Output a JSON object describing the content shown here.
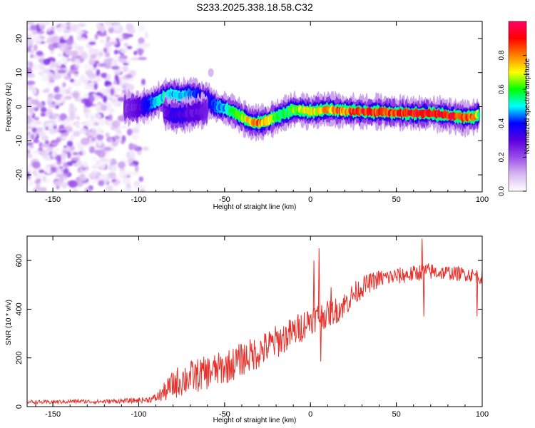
{
  "figure_title": "S233.2025.338.18.58.C32",
  "chart_data": [
    {
      "type": "heatmap",
      "name": "spectrogram",
      "title": "S233.2025.338.18.58.C32",
      "xlabel": "Height of straight line (km)",
      "ylabel": "Frequency (Hz)",
      "xlim": [
        -165,
        100
      ],
      "ylim": [
        -25,
        25
      ],
      "xticks": [
        -150,
        -100,
        -50,
        0,
        50,
        100
      ],
      "yticks": [
        -20,
        -10,
        0,
        10,
        20
      ],
      "xtick_labels": [
        "-150",
        "-100",
        "-50",
        "0",
        "50",
        "100"
      ],
      "ytick_labels": [
        "-20",
        "-10",
        "0",
        "10",
        "20"
      ],
      "noise_region_x": [
        -165,
        -93
      ],
      "ridge": {
        "x": [
          -108,
          -100,
          -95,
          -90,
          -85,
          -80,
          -75,
          -70,
          -65,
          -60,
          -55,
          -50,
          -45,
          -40,
          -35,
          -30,
          -25,
          -20,
          -15,
          -10,
          -5,
          0,
          5,
          10,
          15,
          20,
          30,
          40,
          50,
          60,
          70,
          80,
          90,
          95,
          98
        ],
        "y": [
          -0.5,
          -0.3,
          0.5,
          1.5,
          3.0,
          3.5,
          3.0,
          3.5,
          3.0,
          2.0,
          0.0,
          -0.5,
          -1.5,
          -3.0,
          -4.5,
          -4.8,
          -4.2,
          -3.0,
          -2.0,
          -1.0,
          -1.0,
          -1.5,
          -1.2,
          -0.8,
          -1.0,
          -1.3,
          -1.5,
          -1.5,
          -1.8,
          -2.0,
          -2.0,
          -2.5,
          -3.2,
          -3.0,
          -2.2
        ],
        "amplitude": [
          0.25,
          0.3,
          0.4,
          0.5,
          0.55,
          0.5,
          0.5,
          0.45,
          0.4,
          0.35,
          0.45,
          0.5,
          0.6,
          0.65,
          0.8,
          0.85,
          0.8,
          0.6,
          0.6,
          0.65,
          0.7,
          0.75,
          0.75,
          0.8,
          0.85,
          0.85,
          0.95,
          0.9,
          0.9,
          0.95,
          0.95,
          0.95,
          0.9,
          0.85,
          0.6
        ]
      },
      "secondary_branch": {
        "x": [
          -85,
          -80,
          -75,
          -70,
          -65,
          -60
        ],
        "y": [
          -1.5,
          -2.5,
          -2.5,
          -2.0,
          -1.5,
          -1.0
        ],
        "amplitude": [
          0.3,
          0.35,
          0.35,
          0.3,
          0.3,
          0.25
        ]
      },
      "colorbar": {
        "label": "Normalized spectral amplitude",
        "range": [
          0.0,
          1.0
        ],
        "ticks": [
          0.0,
          0.2,
          0.4,
          0.6,
          0.8
        ],
        "tick_labels": [
          "0.0",
          "0.2",
          "0.4",
          "0.6",
          "0.8"
        ],
        "colors": [
          "#ffffff",
          "#d8b8f0",
          "#9a4de8",
          "#5a00e0",
          "#0000ff",
          "#00ffff",
          "#00ff00",
          "#ffff00",
          "#ff8000",
          "#ff0000",
          "#ff0066"
        ]
      }
    },
    {
      "type": "line",
      "name": "snr",
      "xlabel": "Height of straight line (km)",
      "ylabel": "SNR (10 * v/v)",
      "xlim": [
        -165,
        100
      ],
      "ylim": [
        0,
        700
      ],
      "xticks": [
        -150,
        -100,
        -50,
        0,
        50,
        100
      ],
      "yticks": [
        0,
        200,
        400,
        600
      ],
      "xtick_labels": [
        "-150",
        "-100",
        "-50",
        "0",
        "50",
        "100"
      ],
      "ytick_labels": [
        "0",
        "200",
        "400",
        "600"
      ],
      "color": "#e8302a",
      "series": [
        {
          "name": "SNR",
          "x": [
            -165,
            -155,
            -145,
            -135,
            -125,
            -115,
            -105,
            -95,
            -90,
            -85,
            -80,
            -75,
            -70,
            -65,
            -60,
            -55,
            -50,
            -45,
            -40,
            -35,
            -30,
            -25,
            -20,
            -15,
            -10,
            -5,
            0,
            5,
            10,
            15,
            20,
            25,
            30,
            35,
            40,
            45,
            50,
            55,
            60,
            65,
            70,
            75,
            80,
            85,
            90,
            95,
            100
          ],
          "y": [
            20,
            18,
            20,
            22,
            20,
            22,
            24,
            28,
            35,
            60,
            90,
            110,
            120,
            130,
            140,
            150,
            160,
            175,
            195,
            210,
            225,
            245,
            265,
            285,
            305,
            330,
            360,
            370,
            380,
            395,
            420,
            460,
            490,
            510,
            525,
            530,
            535,
            540,
            545,
            555,
            555,
            550,
            550,
            545,
            545,
            540,
            530
          ],
          "noise_amplitude": [
            8,
            8,
            8,
            8,
            8,
            9,
            10,
            12,
            18,
            40,
            60,
            70,
            70,
            70,
            70,
            70,
            70,
            70,
            70,
            70,
            70,
            70,
            70,
            65,
            65,
            65,
            60,
            60,
            55,
            55,
            55,
            50,
            45,
            40,
            38,
            35,
            35,
            35,
            35,
            35,
            35,
            30,
            30,
            30,
            30,
            30,
            30
          ]
        }
      ],
      "spikes": [
        {
          "x": 2,
          "y": 600
        },
        {
          "x": 5,
          "y": 650
        },
        {
          "x": 6,
          "y": 185
        },
        {
          "x": 12,
          "y": 490
        },
        {
          "x": 65,
          "y": 690
        },
        {
          "x": 66,
          "y": 370
        },
        {
          "x": 97,
          "y": 370
        }
      ]
    }
  ]
}
